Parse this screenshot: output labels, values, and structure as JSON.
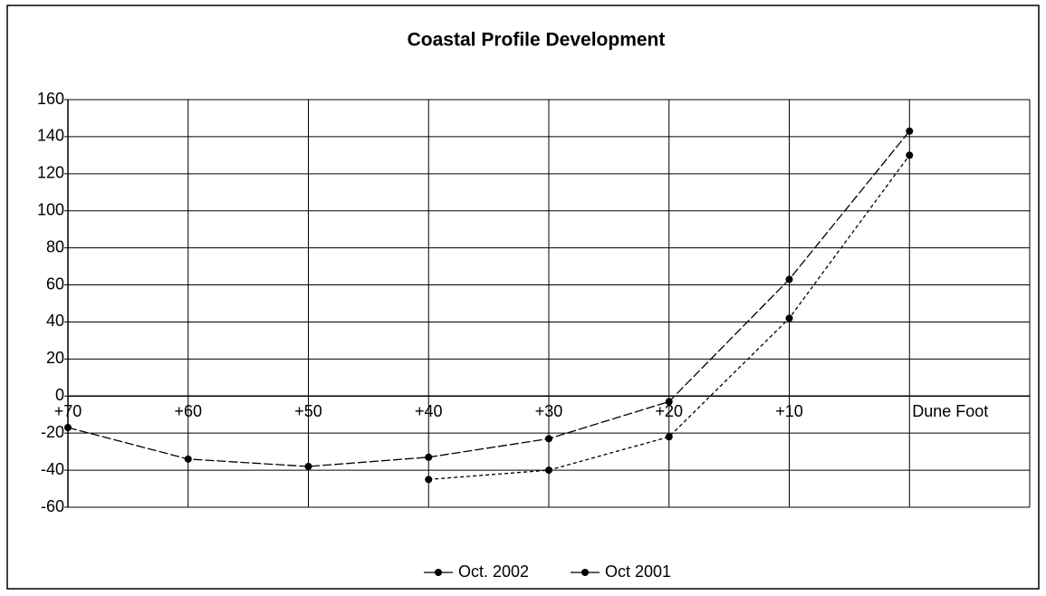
{
  "chart_data": {
    "type": "line",
    "title": "Coastal Profile Development",
    "categories": [
      "+70",
      "+60",
      "+50",
      "+40",
      "+30",
      "+20",
      "+10",
      "Dune Foot"
    ],
    "series": [
      {
        "name": "Oct. 2002",
        "color": "#000000",
        "values": [
          -17,
          -34,
          -38,
          -33,
          -23,
          -3,
          63,
          143
        ]
      },
      {
        "name": "Oct 2001",
        "color": "#000000",
        "values": [
          null,
          null,
          null,
          -45,
          -40,
          -22,
          42,
          130
        ]
      }
    ],
    "ylim": [
      -60,
      160
    ],
    "yticks": [
      -60,
      -40,
      -20,
      0,
      20,
      40,
      60,
      80,
      100,
      120,
      140,
      160
    ],
    "grid": true,
    "legend": "bottom"
  }
}
